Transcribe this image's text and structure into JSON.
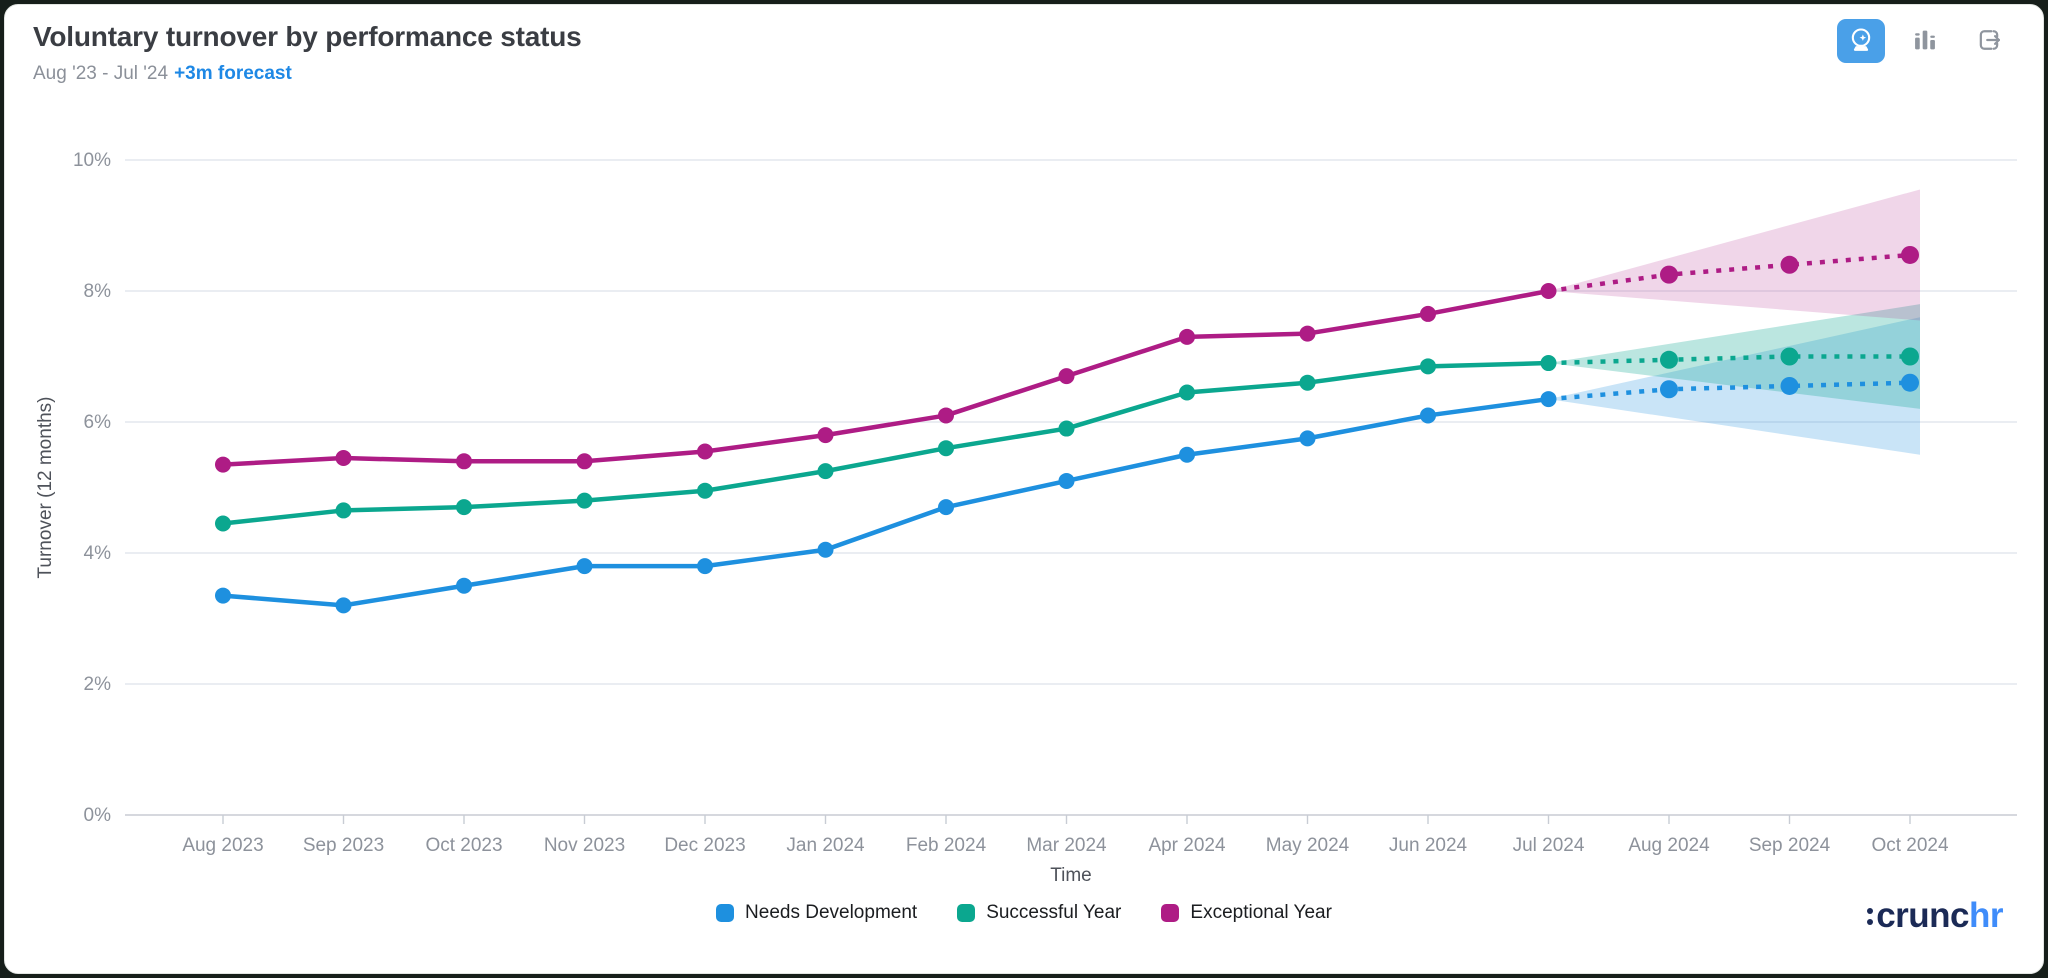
{
  "header": {
    "title": "Voluntary turnover by performance status",
    "subtitle_range": "Aug '23 - Jul '24",
    "subtitle_forecast": "+3m forecast"
  },
  "toolbar": {
    "forecast_button": "forecast (active)",
    "chart_type_button": "bar chart",
    "export_button": "export",
    "active_color": "#4AA0E8",
    "icon_color": "#8F959E"
  },
  "chart_data": {
    "type": "line",
    "title": "Voluntary turnover by performance status",
    "xlabel": "Time",
    "ylabel": "Turnover (12 months)",
    "ylim": [
      0,
      10
    ],
    "yticks": [
      "0%",
      "2%",
      "4%",
      "6%",
      "8%",
      "10%"
    ],
    "x": [
      "Aug 2023",
      "Sep 2023",
      "Oct 2023",
      "Nov 2023",
      "Dec 2023",
      "Jan 2024",
      "Feb 2024",
      "Mar 2024",
      "Apr 2024",
      "May 2024",
      "Jun 2024",
      "Jul 2024",
      "Aug 2024",
      "Sep 2024",
      "Oct 2024"
    ],
    "forecast_start_index": 11,
    "legend_position": "bottom-center",
    "grid": "horizontal",
    "series": [
      {
        "name": "Needs Development",
        "color": "#1E90DF",
        "values": [
          3.35,
          3.2,
          3.5,
          3.8,
          3.8,
          4.05,
          4.7,
          5.1,
          5.5,
          5.75,
          6.1,
          6.35,
          6.5,
          6.55,
          6.6
        ],
        "forecast_band_end": {
          "lo": 5.5,
          "hi": 7.6
        },
        "band_opacity": 0.24
      },
      {
        "name": "Successful Year",
        "color": "#0BA78F",
        "values": [
          4.45,
          4.65,
          4.7,
          4.8,
          4.95,
          5.25,
          5.6,
          5.9,
          6.45,
          6.6,
          6.85,
          6.9,
          6.95,
          7.0,
          7.0
        ],
        "forecast_band_end": {
          "lo": 6.2,
          "hi": 7.8
        },
        "band_opacity": 0.28
      },
      {
        "name": "Exceptional Year",
        "color": "#AE1C85",
        "values": [
          5.35,
          5.45,
          5.4,
          5.4,
          5.55,
          5.8,
          6.1,
          6.7,
          7.3,
          7.35,
          7.65,
          8.0,
          8.25,
          8.4,
          8.55
        ],
        "forecast_band_end": {
          "lo": 7.55,
          "hi": 9.55
        },
        "band_opacity": 0.18
      }
    ]
  },
  "logo": {
    "dark": "crunc",
    "accent": "hr"
  }
}
